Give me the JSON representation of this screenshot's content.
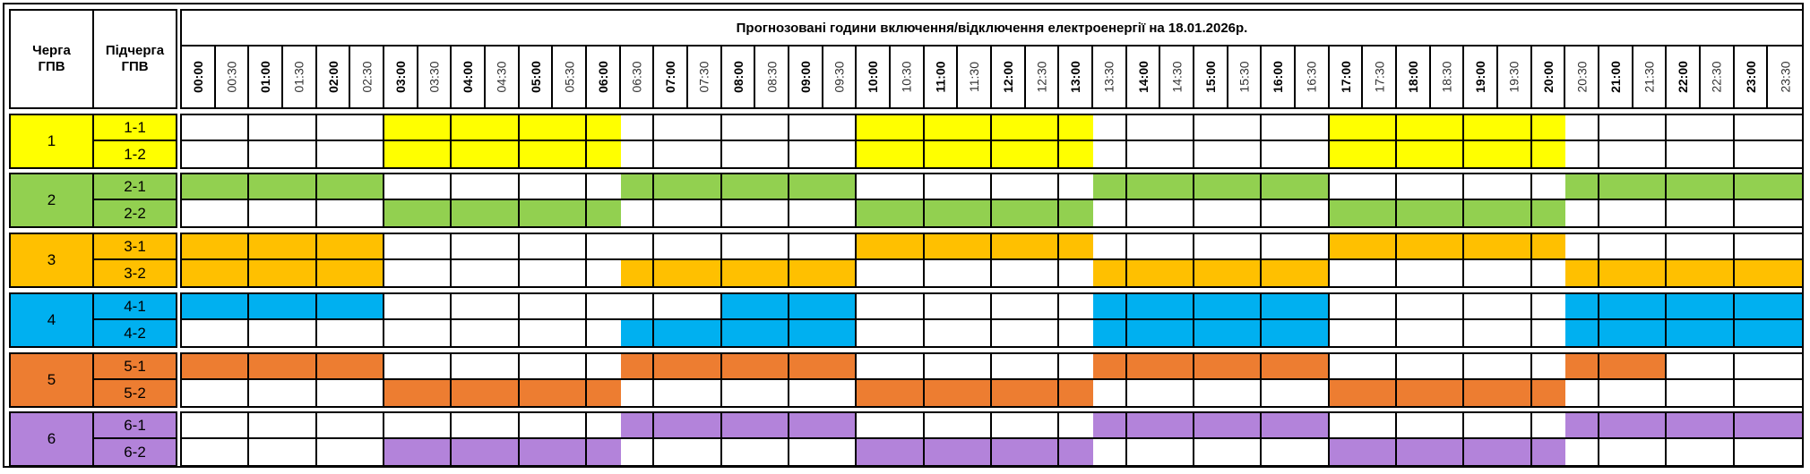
{
  "header": {
    "queue_label": "Черга ГПВ",
    "subqueue_label": "Підчерга ГПВ",
    "title": "Прогнозовані години включення/відключення електроенергії на 18.01.2026р."
  },
  "times": [
    "00:00",
    "00:30",
    "01:00",
    "01:30",
    "02:00",
    "02:30",
    "03:00",
    "03:30",
    "04:00",
    "04:30",
    "05:00",
    "05:30",
    "06:00",
    "06:30",
    "07:00",
    "07:30",
    "08:00",
    "08:30",
    "09:00",
    "09:30",
    "10:00",
    "10:30",
    "11:00",
    "11:30",
    "12:00",
    "12:30",
    "13:00",
    "13:30",
    "14:00",
    "14:30",
    "15:00",
    "15:30",
    "16:00",
    "16:30",
    "17:00",
    "17:30",
    "18:00",
    "18:30",
    "19:00",
    "19:30",
    "20:00",
    "20:30",
    "21:00",
    "21:30",
    "22:00",
    "22:30",
    "23:00",
    "23:30"
  ],
  "groups": [
    {
      "label": "1",
      "color": "#FFFF00",
      "subs": [
        {
          "label": "1-1",
          "slots": "000000111111100000001111111000000011111110000000"
        },
        {
          "label": "1-2",
          "slots": "000000111111100000001111111000000011111110000000"
        }
      ]
    },
    {
      "label": "2",
      "color": "#92D050",
      "subs": [
        {
          "label": "2-1",
          "slots": "111111000000011111110000000111111100000001111111"
        },
        {
          "label": "2-2",
          "slots": "000000111111100000001111111000000011111110000000"
        }
      ]
    },
    {
      "label": "3",
      "color": "#FFC000",
      "subs": [
        {
          "label": "3-1",
          "slots": "111111000000000000001111111000000011111110000000"
        },
        {
          "label": "3-2",
          "slots": "111111000000011111110000000111111100000001111111"
        }
      ]
    },
    {
      "label": "4",
      "color": "#00B0F0",
      "subs": [
        {
          "label": "4-1",
          "slots": "111111000000000011110000000111111100000001111111"
        },
        {
          "label": "4-2",
          "slots": "000000000000011111110000000111111100000001111111"
        }
      ]
    },
    {
      "label": "5",
      "color": "#ED7D31",
      "subs": [
        {
          "label": "5-1",
          "slots": "111111000000011111110000000111111100000001110000"
        },
        {
          "label": "5-2",
          "slots": "000000111111100000001111111000000011111110000000"
        }
      ]
    },
    {
      "label": "6",
      "color": "#B383DA",
      "subs": [
        {
          "label": "6-1",
          "slots": "000000000000011111110000000111111100000001111111"
        },
        {
          "label": "6-2",
          "slots": "000000111111100000001111111000000011111110000000"
        }
      ]
    }
  ]
}
